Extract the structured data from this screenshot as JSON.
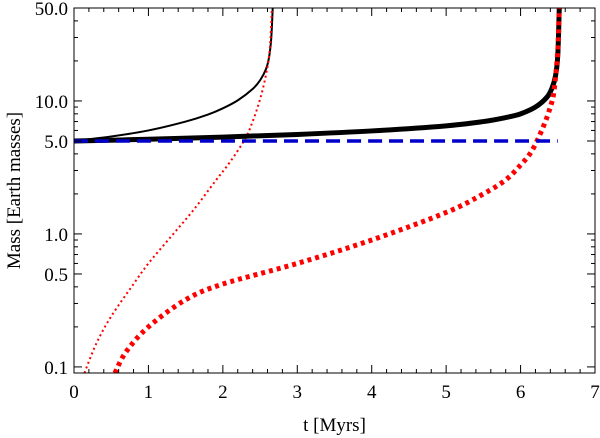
{
  "chart_data": {
    "type": "line",
    "title": "",
    "xlabel": "t [Myrs]",
    "ylabel": "Mass [Earth masses]",
    "xlim": [
      0,
      7
    ],
    "ylim": [
      0.09,
      50
    ],
    "yscale": "log",
    "grid": false,
    "legend": "none",
    "x_ticks": [
      0,
      1,
      2,
      3,
      4,
      5,
      6,
      7
    ],
    "x_tick_labels": [
      "0",
      "1",
      "2",
      "3",
      "4",
      "5",
      "6",
      "7"
    ],
    "y_ticks": [
      0.1,
      0.5,
      1,
      5,
      10,
      50
    ],
    "y_tick_labels": [
      "0.1",
      "0.5",
      "1.0",
      "5.0",
      "10.0",
      "50.0"
    ],
    "series": [
      {
        "name": "core-mass-thin",
        "color": "#000000",
        "style": "solid-thin",
        "x": [
          0,
          0.5,
          1.0,
          1.5,
          1.8,
          2.0,
          2.2,
          2.4,
          2.5,
          2.58,
          2.62,
          2.65,
          2.67
        ],
        "y": [
          5.0,
          5.4,
          6.0,
          7.0,
          7.9,
          8.8,
          10.1,
          12.3,
          14.3,
          17.4,
          21.2,
          29.6,
          50
        ]
      },
      {
        "name": "envelope-mass-thin",
        "color": "#ff0000",
        "style": "dotted-thin",
        "x": [
          0.14,
          0.3,
          0.5,
          0.8,
          1.0,
          1.3,
          1.6,
          1.9,
          2.1,
          2.3,
          2.4,
          2.5,
          2.58,
          2.63,
          2.66
        ],
        "y": [
          0.09,
          0.15,
          0.24,
          0.42,
          0.6,
          0.95,
          1.5,
          2.5,
          3.5,
          5.2,
          7.0,
          10.3,
          15.8,
          24.3,
          50
        ]
      },
      {
        "name": "core-mass-thick",
        "color": "#000000",
        "style": "solid-thick",
        "x": [
          0,
          1,
          2,
          3,
          4,
          5,
          5.5,
          5.8,
          6.0,
          6.2,
          6.35,
          6.42,
          6.47,
          6.5,
          6.52
        ],
        "y": [
          5.0,
          5.15,
          5.35,
          5.6,
          5.95,
          6.5,
          7.0,
          7.5,
          8.0,
          9.0,
          10.6,
          12.4,
          15.5,
          22.1,
          50
        ]
      },
      {
        "name": "envelope-mass-thick",
        "color": "#ff0000",
        "style": "dotted-thick",
        "x": [
          0.55,
          0.7,
          1.0,
          1.5,
          2.0,
          3.0,
          4.0,
          5.0,
          5.5,
          5.8,
          6.0,
          6.15,
          6.3,
          6.4,
          6.45,
          6.5,
          6.52
        ],
        "y": [
          0.09,
          0.13,
          0.2,
          0.32,
          0.42,
          0.6,
          0.9,
          1.45,
          2.0,
          2.55,
          3.3,
          4.2,
          6.3,
          9.0,
          12.0,
          24.0,
          50
        ]
      },
      {
        "name": "core-mass-constant",
        "color": "#0000cc",
        "style": "dashed",
        "x": [
          0,
          6.5
        ],
        "y": [
          5.0,
          5.0
        ]
      }
    ]
  }
}
